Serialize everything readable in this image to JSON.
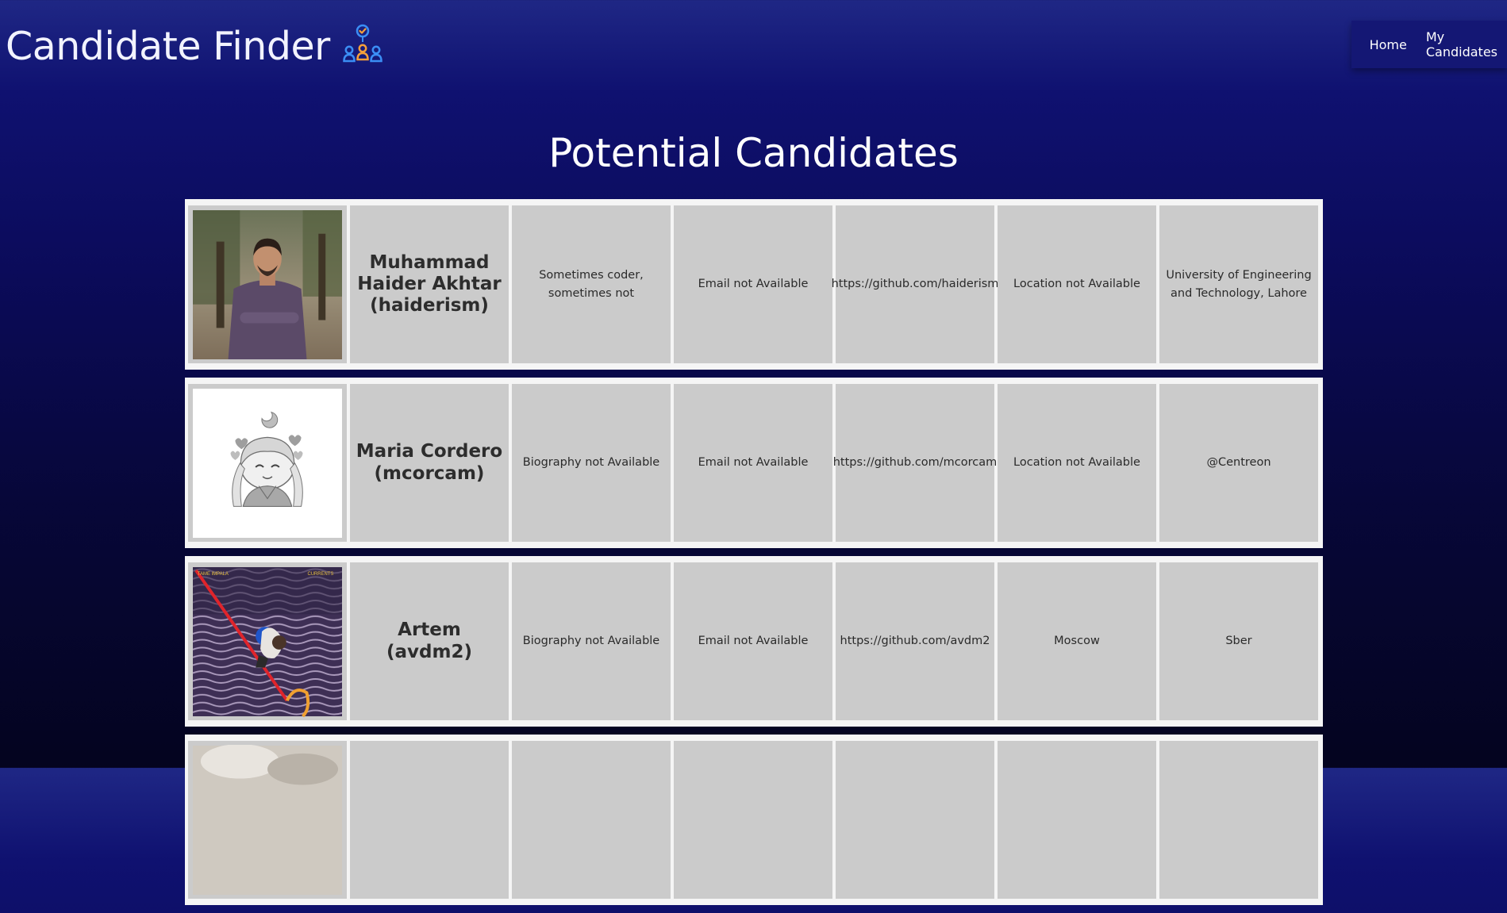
{
  "app": {
    "title": "Candidate Finder",
    "logo_icon": "people-network-check-icon"
  },
  "nav": {
    "items": [
      {
        "label": "Home"
      },
      {
        "label": "My Candidates"
      }
    ]
  },
  "page": {
    "title": "Potential Candidates"
  },
  "candidates": [
    {
      "avatar": "person-photo-avatar",
      "name": "Muhammad Haider Akhtar (haiderism)",
      "bio": "Sometimes coder, sometimes not",
      "email": "Email not Available",
      "github": "https://github.com/haiderism",
      "location": "Location not Available",
      "company": "University of Engineering and Technology, Lahore"
    },
    {
      "avatar": "anime-sketch-avatar",
      "name": "Maria Cordero (mcorcam)",
      "bio": "Biography not Available",
      "email": "Email not Available",
      "github": "https://github.com/mcorcam",
      "location": "Location not Available",
      "company": "@Centreon"
    },
    {
      "avatar": "album-art-avatar",
      "name": "Artem (avdm2)",
      "bio": "Biography not Available",
      "email": "Email not Available",
      "github": "https://github.com/avdm2",
      "location": "Moscow",
      "company": "Sber"
    },
    {
      "avatar": "cat-photo-avatar",
      "name": "",
      "bio": "",
      "email": "",
      "github": "",
      "location": "",
      "company": ""
    }
  ],
  "colors": {
    "background_top": "#1f2785",
    "background_bottom": "#04041f",
    "nav_bg": "#141774",
    "row_bg": "#f5f5f5",
    "cell_bg": "#cbcbcb",
    "logo_blue": "#3b8ef5",
    "logo_orange": "#f5a03b"
  }
}
